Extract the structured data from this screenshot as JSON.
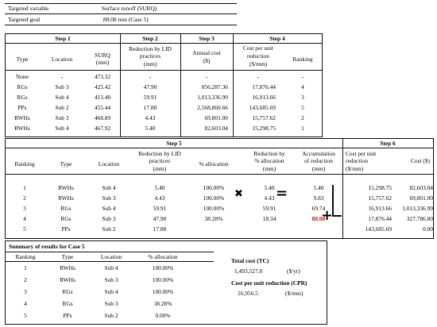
{
  "top": {
    "var_label": "Targeted variable",
    "var_value": "Surface runoff (SURQ)",
    "goal_label": "Targeted goal",
    "goal_value": "88.08 mm (Case 5)"
  },
  "t1": {
    "step1": "Step 1",
    "step2": "Step 2",
    "step3": "Step 3",
    "step4": "Step 4",
    "h_type": "Type",
    "h_loc": "Location",
    "h_surq": "SURQ",
    "h_surq_u": "(mm)",
    "h_red1": "Reduction by LID",
    "h_red2": "practices",
    "h_red3": "(mm)",
    "h_cost1": "Annual cost",
    "h_cost2": "($)",
    "h_cpu1": "Cost per unit",
    "h_cpu2": "reduction",
    "h_cpu3": "($/mm)",
    "h_rank": "Ranking",
    "rows": [
      {
        "type": "None",
        "loc": "-",
        "surq": "473.32",
        "red": "-",
        "cost": "-",
        "cpu": "-",
        "rank": "-"
      },
      {
        "type": "RGs",
        "loc": "Sub 3",
        "surq": "425.42",
        "red": "47.90",
        "cost": "856,287.36",
        "cpu": "17,876.44",
        "rank": "4"
      },
      {
        "type": "RGs",
        "loc": "Sub 4",
        "surq": "413.40",
        "red": "59.91",
        "cost": "1,013,336.99",
        "cpu": "16,913.66",
        "rank": "3"
      },
      {
        "type": "PPs",
        "loc": "Sub 2",
        "surq": "455.44",
        "red": "17.88",
        "cost": "2,568,860.66",
        "cpu": "143,685.69",
        "rank": "5"
      },
      {
        "type": "RWHs",
        "loc": "Sub 3",
        "surq": "468.89",
        "red": "4.43",
        "cost": "69,801.00",
        "cpu": "15,757.62",
        "rank": "2"
      },
      {
        "type": "RWHs",
        "loc": "Sub 4",
        "surq": "467.92",
        "red": "5.40",
        "cost": "82,603.04",
        "cpu": "15,298.75",
        "rank": "1"
      }
    ]
  },
  "t2": {
    "step5": "Step 5",
    "step6": "Step 6",
    "h_rank": "Ranking",
    "h_type": "Type",
    "h_loc": "Location",
    "h_red1": "Reduction by LID",
    "h_red2": "practices",
    "h_red3": "(mm)",
    "h_alloc": "% allocation",
    "h_rbp1": "Reduction by",
    "h_rbp2": "% allocation",
    "h_rbp3": "(mm)",
    "h_acc1": "Accumulation",
    "h_acc2": "of reduction",
    "h_acc3": "(mm)",
    "h_cpu1": "Cost per unit",
    "h_cpu2": "reduction",
    "h_cpu3": "($/mm)",
    "h_cost": "Cost ($)",
    "rows": [
      {
        "rank": "1",
        "type": "RWHs",
        "loc": "Sub 4",
        "red": "5.40",
        "alloc": "100.00%",
        "rbp": "5.40",
        "acc": "5.40",
        "cpu": "15,298.75",
        "cost": "82,603.04"
      },
      {
        "rank": "2",
        "type": "RWHs",
        "loc": "Sub 3",
        "red": "4.43",
        "alloc": "100.00%",
        "rbp": "4.43",
        "acc": "9.83",
        "cpu": "15,757.62",
        "cost": "69,801.00"
      },
      {
        "rank": "3",
        "type": "RGs",
        "loc": "Sub 4",
        "red": "59.91",
        "alloc": "100.00%",
        "rbp": "59.91",
        "acc": "69.74",
        "cpu": "16,913.66",
        "cost": "1,013,336.99"
      },
      {
        "rank": "4",
        "type": "RGs",
        "loc": "Sub 3",
        "red": "47.90",
        "alloc": "38.28%",
        "rbp": "18.34",
        "acc": "88.08",
        "cpu": "17,876.44",
        "cost": "327,786.80"
      },
      {
        "rank": "5",
        "type": "PPs",
        "loc": "Sub 2",
        "red": "17.88",
        "alloc": "",
        "rbp": "",
        "acc": "",
        "cpu": "143,685.69",
        "cost": "0.00"
      }
    ],
    "sym_times": "✖",
    "sym_equals": "=",
    "sym_plus": "+"
  },
  "t3": {
    "title": "Summary of results for Case 5",
    "h_rank": "Ranking",
    "h_type": "Type",
    "h_loc": "Location",
    "h_alloc": "% allocation",
    "rows": [
      {
        "rank": "1",
        "type": "RWHs",
        "loc": "Sub 4",
        "alloc": "100.00%"
      },
      {
        "rank": "2",
        "type": "RWHs",
        "loc": "Sub 3",
        "alloc": "100.00%"
      },
      {
        "rank": "3",
        "type": "RGs",
        "loc": "Sub 4",
        "alloc": "100.00%"
      },
      {
        "rank": "4",
        "type": "RGs",
        "loc": "Sub 3",
        "alloc": "38.28%"
      },
      {
        "rank": "5",
        "type": "PPs",
        "loc": "Sub 2",
        "alloc": "0.00%"
      }
    ],
    "tc_label": "Total cost (TC)",
    "tc_value": "1,493,527.8",
    "tc_unit": "($/yr)",
    "cpr_label": "Cost per unit reduction (CPR)",
    "cpr_value": "16,956.5",
    "cpr_unit": "($/mm)"
  },
  "colors": {
    "highlight": "#d21f1f"
  }
}
